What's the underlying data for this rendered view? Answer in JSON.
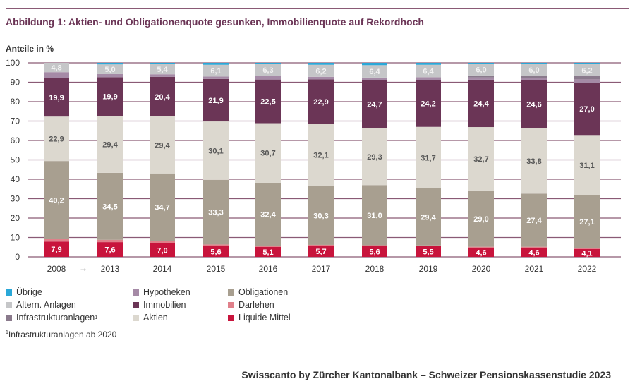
{
  "title": "Abbildung 1: Aktien- und Obligationenquote gesunken, Immobilienquote auf Rekordhoch",
  "footnote": "Infrastrukturanlagen ab 2020",
  "footnote_mark": "1",
  "source": "Swisscanto by Zürcher Kantonalbank – Schweizer Pensionskassenstudie 2023",
  "chart_data": {
    "type": "bar",
    "stacked": true,
    "ylabel": "Anteile in %",
    "ylim": [
      0,
      100
    ],
    "yticks": [
      0,
      10,
      20,
      30,
      40,
      50,
      60,
      70,
      80,
      90,
      100
    ],
    "grid": true,
    "legend_position": "bottom",
    "gap_arrow": "→",
    "categories": [
      "2008",
      "2013",
      "2014",
      "2015",
      "2016",
      "2017",
      "2018",
      "2019",
      "2020",
      "2021",
      "2022"
    ],
    "series": [
      {
        "name": "Liquide Mittel",
        "color": "#c8143c",
        "labeled": true,
        "values": [
          7.9,
          7.6,
          7.0,
          5.6,
          5.1,
          5.7,
          5.6,
          5.5,
          4.6,
          4.6,
          4.1
        ]
      },
      {
        "name": "Darlehen",
        "color": "#e0808a",
        "labeled": false,
        "values": [
          1.3,
          1.2,
          1.3,
          0.8,
          0.7,
          0.5,
          0.4,
          0.4,
          0.6,
          0.6,
          0.5
        ]
      },
      {
        "name": "Obligationen",
        "color": "#a89f90",
        "labeled": true,
        "values": [
          40.2,
          34.5,
          34.7,
          33.3,
          32.4,
          30.3,
          31.0,
          29.4,
          29.0,
          27.4,
          27.1
        ]
      },
      {
        "name": "Aktien",
        "color": "#dcd8cf",
        "labeled": true,
        "values": [
          22.9,
          29.4,
          29.4,
          30.1,
          30.7,
          32.1,
          29.3,
          31.7,
          32.7,
          33.8,
          31.1
        ]
      },
      {
        "name": "Immobilien",
        "color": "#6b3556",
        "labeled": true,
        "values": [
          19.9,
          19.9,
          20.4,
          21.9,
          22.5,
          22.9,
          24.7,
          24.2,
          24.4,
          24.6,
          27.0
        ]
      },
      {
        "name": "Hypotheken",
        "color": "#a58aa6",
        "labeled": false,
        "values": [
          3.0,
          1.6,
          1.3,
          1.2,
          1.9,
          1.3,
          1.4,
          1.4,
          1.2,
          1.2,
          1.7
        ]
      },
      {
        "name": "Infrastrukturanlagen",
        "name_sup": "1",
        "color": "#8a7a8c",
        "labeled": false,
        "values": [
          0,
          0,
          0,
          0,
          0,
          0,
          0,
          0,
          1.0,
          1.2,
          1.6
        ]
      },
      {
        "name": "Altern. Anlagen",
        "color": "#c5c6c8",
        "labeled": true,
        "values": [
          4.8,
          5.0,
          5.4,
          6.1,
          6.3,
          6.2,
          6.4,
          6.4,
          6.0,
          6.0,
          6.2
        ]
      },
      {
        "name": "Übrige",
        "color": "#2aa8d8",
        "labeled": false,
        "values": [
          0,
          0.8,
          0.5,
          1.0,
          0.4,
          1.0,
          1.2,
          1.0,
          0.5,
          0.6,
          0.7
        ]
      }
    ],
    "legend_order": [
      "Übrige",
      "Altern. Anlagen",
      "Infrastrukturanlagen",
      "Hypotheken",
      "Immobilien",
      "Aktien",
      "Obligationen",
      "Darlehen",
      "Liquide Mittel"
    ]
  }
}
